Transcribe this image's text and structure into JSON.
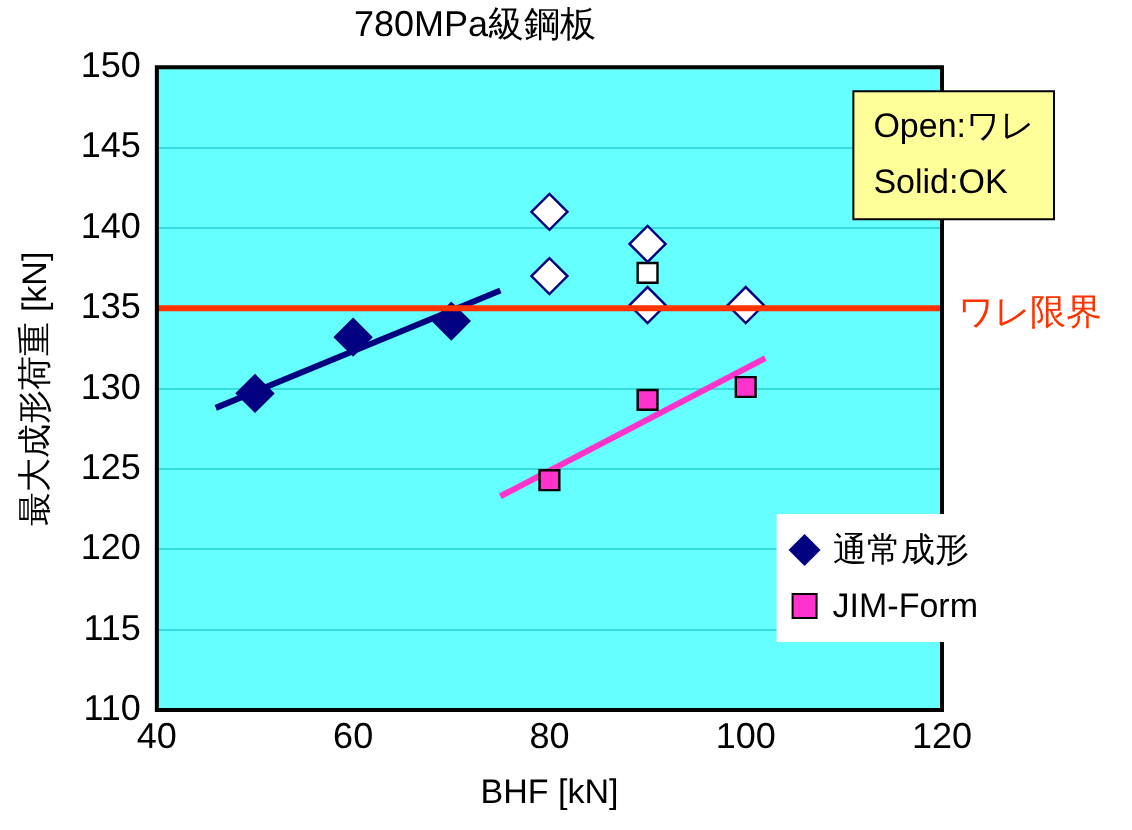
{
  "chart_data": {
    "type": "scatter",
    "title": "780MPa級鋼板",
    "xlabel": "BHF [kN]",
    "ylabel": "最大成形荷重 [kN]",
    "xlim": [
      40,
      120
    ],
    "xticks": [
      40,
      60,
      80,
      100,
      120
    ],
    "ylim": [
      110,
      150
    ],
    "yticks": [
      110,
      115,
      120,
      125,
      130,
      135,
      140,
      145,
      150
    ],
    "grid": "y",
    "legend": "bottom right",
    "series": [
      {
        "name": "通常成形",
        "color": "#000080",
        "marker": "diamond",
        "x": [
          50,
          60,
          70
        ],
        "values": [
          129.7,
          133.2,
          134.2
        ]
      },
      {
        "color": "#ffffff",
        "marker": "diamond",
        "x": [
          80,
          80,
          90,
          90,
          100
        ],
        "values": [
          141,
          137,
          139,
          135.2,
          135.2
        ]
      },
      {
        "color": "#ffffff",
        "marker": "square",
        "x": [
          90
        ],
        "values": [
          137.2
        ]
      },
      {
        "name": "JIM-Form",
        "color": "#ff33cc",
        "marker": "square",
        "x": [
          80,
          90,
          100
        ],
        "values": [
          124.3,
          129.3,
          130.1
        ]
      },
      {
        "type": "line",
        "color": "#000080",
        "marker": "none",
        "x": [
          46,
          75
        ],
        "values": [
          128.8,
          136.1
        ]
      },
      {
        "type": "line",
        "color": "#ff33cc",
        "marker": "none",
        "x": [
          75,
          102
        ],
        "values": [
          123.3,
          131.9
        ]
      }
    ],
    "ref_lines": [
      {
        "axis": "y",
        "value": 135,
        "label": "ワレ限界",
        "color": "#ff3300"
      }
    ],
    "annotations": [
      "Open:ワレ",
      "Solid:OK"
    ]
  }
}
